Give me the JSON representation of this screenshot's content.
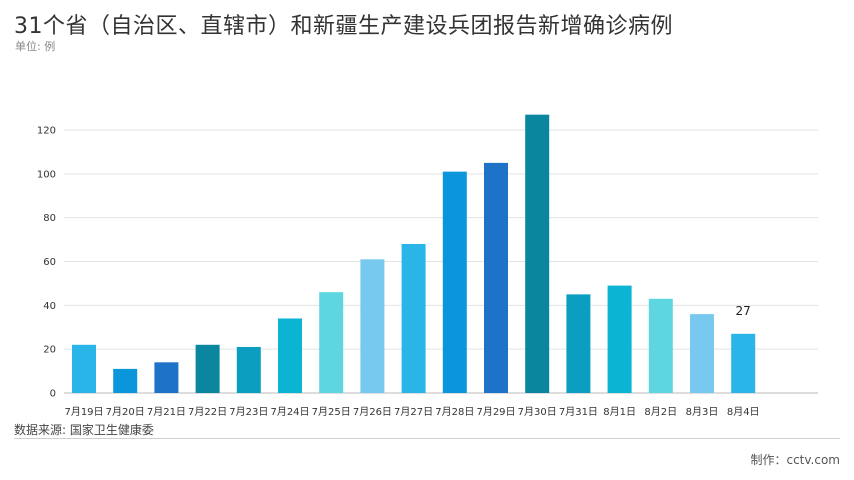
{
  "header": {
    "title": "31个省（自治区、直辖市）和新疆生产建设兵团报告新增确诊病例",
    "unit": "单位: 例"
  },
  "footer": {
    "source": "数据来源: 国家卫生健康委",
    "credit": "制作：cctv.com"
  },
  "chart_data": {
    "type": "bar",
    "categories": [
      "7月19日",
      "7月20日",
      "7月21日",
      "7月22日",
      "7月23日",
      "7月24日",
      "7月25日",
      "7月26日",
      "7月27日",
      "7月28日",
      "7月29日",
      "7月30日",
      "7月31日",
      "8月1日",
      "8月2日",
      "8月3日",
      "8月4日"
    ],
    "values": [
      22,
      11,
      14,
      22,
      21,
      34,
      46,
      61,
      68,
      101,
      105,
      127,
      45,
      49,
      43,
      36,
      27
    ],
    "colors": [
      "#29b5e8",
      "#0b96dc",
      "#1e73c8",
      "#0a879f",
      "#0b9ec0",
      "#0ab4d2",
      "#5dd6e2",
      "#78c9ef",
      "#29b5e8",
      "#0b96dc",
      "#1e73c8",
      "#0a879f",
      "#0b9ec0",
      "#0ab4d2",
      "#5dd6e2",
      "#78c9ef",
      "#29b5e8"
    ],
    "data_labels": [
      {
        "index": 16,
        "text": "27"
      }
    ],
    "ylim": [
      0,
      140
    ],
    "yticks": [
      0,
      20,
      40,
      60,
      80,
      100,
      120
    ],
    "grid": true,
    "xlabel": "",
    "ylabel": ""
  }
}
